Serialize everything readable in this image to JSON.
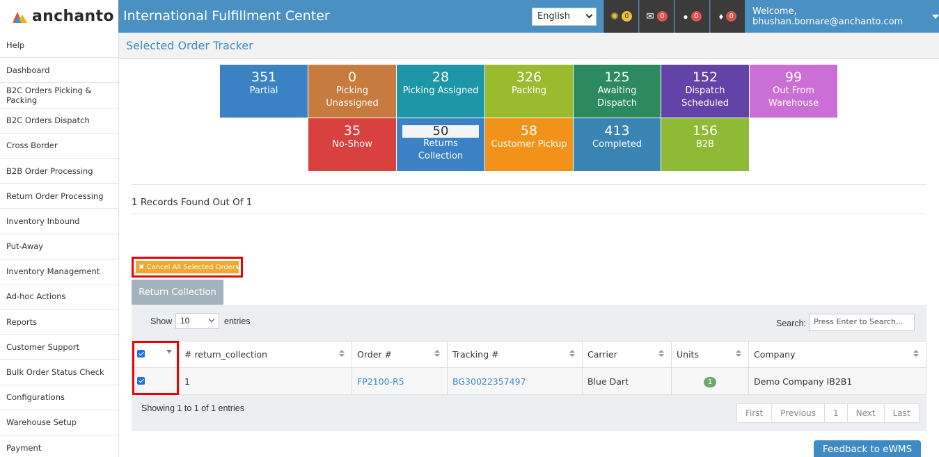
{
  "header": {
    "logo_text": "anchanto",
    "app_title": "International Fulfillment Center",
    "language": "English",
    "icons": [
      {
        "name": "loading-spinner-icon",
        "glyph": "✺",
        "count": "0",
        "color": "#f0c03c"
      },
      {
        "name": "envelope-icon",
        "glyph": "✉",
        "count": "0",
        "color": "#d9534f"
      },
      {
        "name": "user-icon",
        "glyph": "👤",
        "count": "0",
        "color": "#d9534f"
      },
      {
        "name": "bell-icon",
        "glyph": "🔔",
        "count": "0",
        "color": "#d9534f"
      }
    ],
    "welcome": "Welcome, bhushan.bornare@anchanto.com"
  },
  "sidebar": {
    "items": [
      "Help",
      "Dashboard",
      "B2C Orders Picking & Packing",
      "B2C Orders Dispatch",
      "Cross Border",
      "B2B Order Processing",
      "Return Order Processing",
      "Inventory Inbound",
      "Put-Away",
      "Inventory Management",
      "Ad-hoc Actions",
      "Reports",
      "Customer Support",
      "Bulk Order Status Check",
      "Configurations",
      "Warehouse Setup",
      "Payment"
    ]
  },
  "page": {
    "title": "Selected Order Tracker"
  },
  "tiles": [
    {
      "count": "351",
      "label": "Partial",
      "color": "#3a82c4"
    },
    {
      "count": "0",
      "label": "Picking Unassigned",
      "color": "#c77b3e"
    },
    {
      "count": "28",
      "label": "Picking Assigned",
      "color": "#1d97a8"
    },
    {
      "count": "326",
      "label": "Packing",
      "color": "#9bbb2f"
    },
    {
      "count": "125",
      "label": "Awaiting Dispatch",
      "color": "#2d8a5e"
    },
    {
      "count": "152",
      "label": "Dispatch Scheduled",
      "color": "#6243a8"
    },
    {
      "count": "99",
      "label": "Out From Warehouse",
      "color": "#cb6ed6"
    },
    {
      "count": "35",
      "label": "No-Show",
      "color": "#d9413f"
    },
    {
      "count": "50",
      "label": "Returns Collection",
      "color": "#3a82c4"
    },
    {
      "count": "58",
      "label": "Customer Pickup",
      "color": "#f39219"
    },
    {
      "count": "413",
      "label": "Completed",
      "color": "#3a84b4"
    },
    {
      "count": "156",
      "label": "B2B",
      "color": "#8fba35"
    }
  ],
  "records": {
    "summary": "1 Records Found Out Of 1"
  },
  "actions": {
    "cancel_all": "✖ Cancel All Selected Orders",
    "tab_return_collection": "Return Collection"
  },
  "table_controls": {
    "show_label": "Show",
    "page_size": "10",
    "entries_label": "entries",
    "search_label": "Search:",
    "search_placeholder": "Press Enter to Search..."
  },
  "table": {
    "columns": [
      "# return_collection",
      "Order #",
      "Tracking #",
      "Carrier",
      "Units",
      "Company"
    ],
    "rows": [
      {
        "return_collection": "1",
        "order": "FP2100-R5",
        "tracking": "BG30022357497",
        "carrier": "Blue Dart",
        "units": "1",
        "company": "Demo Company IB2B1"
      }
    ]
  },
  "footer": {
    "showing": "Showing 1 to 1 of 1 entries",
    "pager": [
      "First",
      "Previous",
      "1",
      "Next",
      "Last"
    ],
    "feedback": "Feedback to eWMS"
  }
}
